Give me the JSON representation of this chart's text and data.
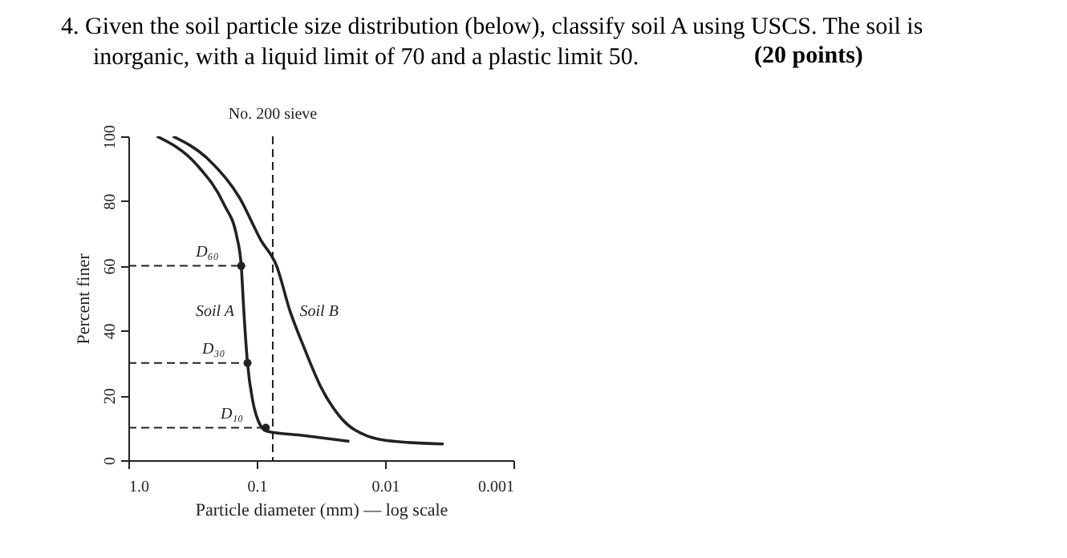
{
  "chart_data": {
    "type": "line",
    "title": "4. Given the soil particle size distribution (below), classify soil A using USCS. The soil is inorganic, with a liquid limit of 70 and a plastic limit 50.",
    "subtitle": "(20 points)",
    "xlabel": "Particle diameter (mm) — log scale",
    "ylabel": "Percent finer",
    "log": "x",
    "xlim": [
      1,
      0.001
    ],
    "xticks": [
      {
        "value": 1,
        "label": "1.0"
      },
      0.1,
      0.01,
      0.001
    ],
    "ylim": [
      0,
      100
    ],
    "yticks": [
      0,
      20,
      40,
      60,
      80,
      100
    ],
    "grid": false,
    "series": [
      {
        "name": "Soil A",
        "color": "#222222",
        "x": [
          0.6,
          0.29,
          0.18,
          0.143,
          0.132,
          0.126,
          0.118,
          0.107,
          0.097,
          0.084,
          0.043,
          0.019
        ],
        "values": [
          100,
          91,
          79,
          69,
          60,
          46,
          30,
          18,
          12,
          9,
          7.6,
          5.8
        ]
      },
      {
        "name": "Soil B",
        "color": "#222222",
        "x": [
          0.45,
          0.24,
          0.136,
          0.093,
          0.07,
          0.055,
          0.043,
          0.032,
          0.022,
          0.0136,
          0.0084,
          0.0035
        ],
        "values": [
          100,
          93,
          81,
          68,
          60,
          46,
          35,
          23,
          13,
          7.4,
          5.8,
          5
        ]
      },
      {
        "type": "line",
        "line_style": "dashed",
        "color": "#222222",
        "x": [
          1,
          0.132
        ],
        "values": [
          60,
          60
        ]
      },
      {
        "type": "line",
        "line_style": "dashed",
        "color": "#222222",
        "x": [
          1,
          0.118
        ],
        "values": [
          30,
          30
        ]
      },
      {
        "type": "line",
        "line_style": "dashed",
        "color": "#222222",
        "x": [
          1,
          0.085
        ],
        "values": [
          10,
          10
        ]
      },
      {
        "type": "scatter",
        "marker": "circle",
        "color": "#222222",
        "x": [
          0.132,
          0.118,
          0.085
        ],
        "values": [
          60,
          30,
          10
        ]
      }
    ],
    "ref_lines": [
      {
        "axis": "x",
        "value": 0.075,
        "label": "No. 200 sieve",
        "line_style": "dashed",
        "color": "#222222"
      }
    ],
    "annotations": [
      {
        "text": "D₆₀",
        "x": 0.132,
        "y": 60
      },
      {
        "text": "D₃₀",
        "x": 0.118,
        "y": 30
      },
      {
        "text": "D₁₀",
        "x": 0.085,
        "y": 10
      }
    ]
  }
}
